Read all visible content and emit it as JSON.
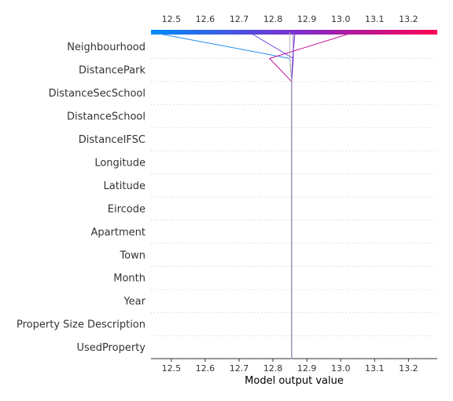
{
  "chart_data": {
    "type": "line",
    "subtype": "shap-decision-plot",
    "xlabel": "Model output value",
    "xlim": [
      12.44,
      13.285
    ],
    "xticks": [
      "12.5",
      "12.6",
      "12.7",
      "12.8",
      "12.9",
      "13.0",
      "13.1",
      "13.2"
    ],
    "xtick_values": [
      12.5,
      12.6,
      12.7,
      12.8,
      12.9,
      13.0,
      13.1,
      13.2
    ],
    "features": [
      "Neighbourhood",
      "DistancePark",
      "DistanceSecSchool",
      "DistanceSchool",
      "DistanceIFSC",
      "Longitude",
      "Latitude",
      "Eircode",
      "Apartment",
      "Town",
      "Month",
      "Year",
      "Property Size Description",
      "UsedProperty"
    ],
    "base_value": 12.855,
    "colormap": [
      "#008bfa",
      "#ff0052"
    ],
    "grid": "dotted horizontal",
    "series": [
      {
        "color": "#1f8ef1",
        "x_top": 12.44,
        "x_after": [
          12.85,
          12.855,
          12.855,
          12.855,
          12.855,
          12.855,
          12.855,
          12.855,
          12.855,
          12.855,
          12.855,
          12.855,
          12.855,
          12.855
        ]
      },
      {
        "color": "#c0149f",
        "x_top": 13.04,
        "x_after": [
          12.79,
          12.855,
          12.855,
          12.855,
          12.855,
          12.855,
          12.855,
          12.855,
          12.855,
          12.855,
          12.855,
          12.855,
          12.855,
          12.855
        ]
      },
      {
        "color": "#6a3fd9",
        "x_top": 12.73,
        "x_after": [
          12.86,
          12.855,
          12.855,
          12.855,
          12.855,
          12.855,
          12.855,
          12.855,
          12.855,
          12.855,
          12.855,
          12.855,
          12.855,
          12.855
        ]
      },
      {
        "color": "#7f55d0",
        "x_top": 12.86,
        "x_after": [
          12.86,
          12.855,
          12.855,
          12.855,
          12.855,
          12.855,
          12.855,
          12.855,
          12.855,
          12.855,
          12.855,
          12.855,
          12.855,
          12.855
        ]
      },
      {
        "color": "#7c3bc8",
        "x_top": 12.865,
        "x_after": [
          12.858,
          12.855,
          12.855,
          12.855,
          12.855,
          12.855,
          12.855,
          12.855,
          12.855,
          12.855,
          12.855,
          12.855,
          12.855,
          12.855
        ]
      },
      {
        "color": "#b3b3b3",
        "x_top": 12.85,
        "x_after": [
          12.85,
          12.855,
          12.855,
          12.855,
          12.855,
          12.855,
          12.855,
          12.855,
          12.855,
          12.855,
          12.855,
          12.855,
          12.855,
          12.855
        ]
      }
    ]
  }
}
